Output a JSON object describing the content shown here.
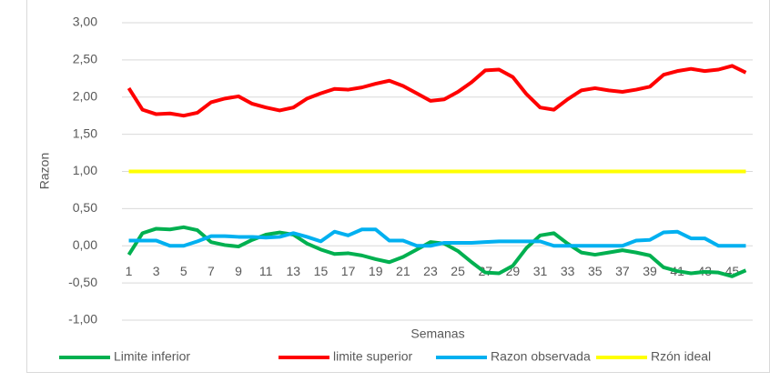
{
  "chart_data": {
    "type": "line",
    "y_label": "Razon",
    "x_label": "Semanas",
    "categories": [
      "1",
      null,
      "3",
      null,
      "5",
      null,
      "7",
      null,
      "9",
      null,
      "11",
      null,
      "13",
      null,
      "15",
      null,
      "17",
      null,
      "19",
      null,
      "21",
      null,
      "23",
      null,
      "25",
      null,
      "27",
      null,
      "29",
      null,
      "31",
      null,
      "33",
      null,
      "35",
      null,
      "37",
      null,
      "39",
      null,
      "41",
      null,
      "43",
      null,
      "45",
      null
    ],
    "series": [
      {
        "name": "Limite inferior",
        "color": "#00B050",
        "values": [
          -0.12,
          0.17,
          0.23,
          0.22,
          0.25,
          0.21,
          0.05,
          0.01,
          -0.01,
          0.08,
          0.15,
          0.18,
          0.15,
          0.03,
          -0.05,
          -0.11,
          -0.1,
          -0.13,
          -0.18,
          -0.22,
          -0.15,
          -0.05,
          0.05,
          0.03,
          -0.07,
          -0.22,
          -0.36,
          -0.37,
          -0.27,
          -0.03,
          0.14,
          0.17,
          0.03,
          -0.09,
          -0.12,
          -0.09,
          -0.06,
          -0.09,
          -0.13,
          -0.29,
          -0.34,
          -0.37,
          -0.35,
          -0.36,
          -0.41,
          -0.33
        ]
      },
      {
        "name": "limite superior",
        "color": "#FF0000",
        "values": [
          2.12,
          1.83,
          1.77,
          1.78,
          1.75,
          1.79,
          1.93,
          1.98,
          2.01,
          1.91,
          1.86,
          1.82,
          1.86,
          1.98,
          2.05,
          2.11,
          2.1,
          2.13,
          2.18,
          2.22,
          2.15,
          2.05,
          1.95,
          1.97,
          2.07,
          2.2,
          2.36,
          2.37,
          2.27,
          2.04,
          1.86,
          1.83,
          1.97,
          2.09,
          2.12,
          2.09,
          2.07,
          2.1,
          2.14,
          2.3,
          2.35,
          2.38,
          2.35,
          2.37,
          2.42,
          2.33
        ]
      },
      {
        "name": "Razon observada",
        "color": "#00B0F0",
        "values": [
          0.07,
          0.07,
          0.07,
          0.0,
          0.0,
          0.06,
          0.13,
          0.13,
          0.12,
          0.12,
          0.11,
          0.12,
          0.17,
          0.12,
          0.06,
          0.19,
          0.14,
          0.22,
          0.22,
          0.07,
          0.07,
          0.0,
          0.0,
          0.04,
          0.04,
          0.04,
          0.05,
          0.06,
          0.06,
          0.06,
          0.06,
          0.0,
          0.0,
          0.0,
          0.0,
          0.0,
          0.0,
          0.07,
          0.08,
          0.18,
          0.19,
          0.1,
          0.1,
          0.0,
          0.0,
          0.0
        ]
      },
      {
        "name": "Rzón ideal",
        "color": "#FFFF00",
        "values": [
          1,
          1,
          1,
          1,
          1,
          1,
          1,
          1,
          1,
          1,
          1,
          1,
          1,
          1,
          1,
          1,
          1,
          1,
          1,
          1,
          1,
          1,
          1,
          1,
          1,
          1,
          1,
          1,
          1,
          1,
          1,
          1,
          1,
          1,
          1,
          1,
          1,
          1,
          1,
          1,
          1,
          1,
          1,
          1,
          1,
          1
        ]
      }
    ],
    "ylim": [
      -1,
      3
    ],
    "yticks": [
      {
        "value": -1,
        "label": "-1,00"
      },
      {
        "value": -0.5,
        "label": "-0,50"
      },
      {
        "value": 0,
        "label": "0,00"
      },
      {
        "value": 0.5,
        "label": "0,50"
      },
      {
        "value": 1,
        "label": "1,00"
      },
      {
        "value": 1.5,
        "label": "1,50"
      },
      {
        "value": 2,
        "label": "2,00"
      },
      {
        "value": 2.5,
        "label": "2,50"
      },
      {
        "value": 3,
        "label": "3,00"
      }
    ],
    "grid": true,
    "legend": "bottom"
  }
}
